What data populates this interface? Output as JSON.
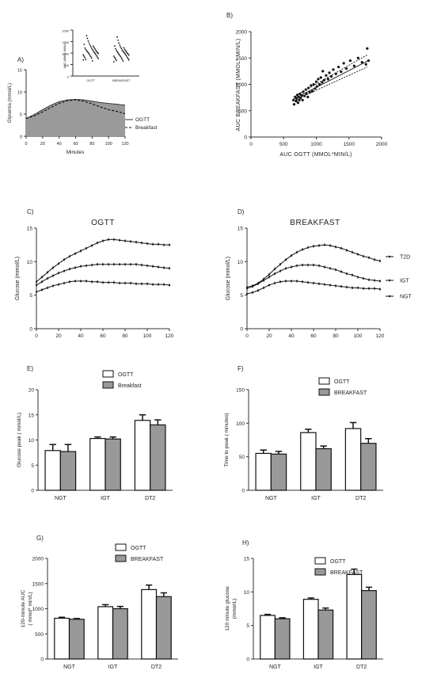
{
  "chart_data": [
    {
      "panel": "A)",
      "type": "area",
      "ylabel": "Glycemia (mmol/L)",
      "xlabel": "Minutes",
      "xlim": [
        0,
        120
      ],
      "ylim": [
        0,
        15
      ],
      "xticks": [
        0,
        20,
        40,
        60,
        80,
        100,
        120
      ],
      "yticks": [
        0,
        5,
        10,
        15
      ],
      "series": [
        {
          "name": "OGTT",
          "style": "solid",
          "x": [
            0,
            10,
            20,
            30,
            40,
            50,
            60,
            70,
            80,
            90,
            100,
            110,
            120
          ],
          "y": [
            4.0,
            4.9,
            6.0,
            7.0,
            7.8,
            8.2,
            8.3,
            8.2,
            7.9,
            7.6,
            7.4,
            7.2,
            7.0
          ]
        },
        {
          "name": "Breakfast",
          "style": "dashed",
          "x": [
            0,
            10,
            20,
            30,
            40,
            50,
            60,
            70,
            80,
            90,
            100,
            110,
            120
          ],
          "y": [
            4.0,
            4.6,
            5.5,
            6.5,
            7.4,
            8.0,
            8.2,
            7.9,
            7.3,
            6.6,
            6.0,
            5.6,
            5.1
          ]
        }
      ],
      "inset": {
        "type": "scatter",
        "categories": [
          "OGTT",
          "BREAKFAST"
        ],
        "yticks": [
          0,
          500,
          1000,
          1500,
          2000
        ],
        "ylim": [
          0,
          2000
        ],
        "ylabel": "AUC (MMOL*MIN/L)",
        "ogtt_values": [
          700,
          760,
          820,
          880,
          940,
          990,
          1040,
          1090,
          1150,
          1210,
          1280,
          1350,
          1430,
          1520,
          1640,
          1760,
          720,
          800,
          860,
          920,
          980,
          1020,
          1070,
          1120,
          1180,
          1240,
          1300,
          660,
          780,
          840,
          900,
          960,
          1010,
          1060,
          1100,
          1160,
          1220,
          1380
        ],
        "breakfast_values": [
          620,
          700,
          760,
          820,
          880,
          930,
          980,
          1030,
          1080,
          1130,
          1200,
          1270,
          1350,
          1440,
          1560,
          1700,
          680,
          740,
          800,
          860,
          910,
          960,
          1000,
          1050,
          1100,
          1160,
          1230,
          650,
          720,
          790,
          850,
          900,
          950,
          1010,
          1060,
          1120,
          1190,
          1310
        ]
      }
    },
    {
      "panel": "B)",
      "type": "scatter",
      "xlabel": "AUC OGTT (MMOL*MIN/L)",
      "ylabel": "AUC BREAKFAST (MMOL* MIN/L)",
      "xlim": [
        0,
        2000
      ],
      "ylim": [
        0,
        2000
      ],
      "xticks": [
        0,
        500,
        1000,
        1500,
        2000
      ],
      "yticks": [
        0,
        500,
        1000,
        1500,
        2000
      ],
      "points": [
        [
          650,
          700
        ],
        [
          660,
          620
        ],
        [
          680,
          760
        ],
        [
          690,
          680
        ],
        [
          700,
          720
        ],
        [
          710,
          800
        ],
        [
          720,
          650
        ],
        [
          730,
          760
        ],
        [
          740,
          700
        ],
        [
          750,
          820
        ],
        [
          760,
          740
        ],
        [
          780,
          790
        ],
        [
          790,
          700
        ],
        [
          800,
          860
        ],
        [
          820,
          780
        ],
        [
          840,
          900
        ],
        [
          850,
          820
        ],
        [
          870,
          760
        ],
        [
          880,
          930
        ],
        [
          900,
          850
        ],
        [
          920,
          980
        ],
        [
          940,
          870
        ],
        [
          960,
          1000
        ],
        [
          980,
          920
        ],
        [
          1000,
          1050
        ],
        [
          1010,
          960
        ],
        [
          1030,
          1100
        ],
        [
          1050,
          1000
        ],
        [
          1070,
          1130
        ],
        [
          1090,
          1040
        ],
        [
          1100,
          1250
        ],
        [
          1120,
          1080
        ],
        [
          1150,
          1170
        ],
        [
          1180,
          1100
        ],
        [
          1200,
          1220
        ],
        [
          1230,
          1150
        ],
        [
          1260,
          1280
        ],
        [
          1300,
          1200
        ],
        [
          1340,
          1330
        ],
        [
          1380,
          1240
        ],
        [
          1420,
          1400
        ],
        [
          1460,
          1300
        ],
        [
          1520,
          1450
        ],
        [
          1580,
          1350
        ],
        [
          1640,
          1500
        ],
        [
          1700,
          1420
        ],
        [
          1760,
          1380
        ],
        [
          1780,
          1680
        ],
        [
          1800,
          1450
        ]
      ],
      "fit": {
        "x": [
          650,
          1780
        ],
        "y": [
          720,
          1440
        ]
      },
      "ci_upper": {
        "x": [
          650,
          1780
        ],
        "y": [
          760,
          1560
        ]
      },
      "ci_lower": {
        "x": [
          650,
          1780
        ],
        "y": [
          690,
          1330
        ]
      }
    },
    {
      "panel": "C)",
      "type": "line",
      "title": "OGTT",
      "ylabel": "Glucose (mmol/L)",
      "xlim": [
        0,
        120
      ],
      "ylim": [
        0,
        15
      ],
      "xticks": [
        0,
        20,
        40,
        60,
        80,
        100,
        120
      ],
      "yticks": [
        0,
        5,
        10,
        15
      ],
      "x": [
        0,
        5,
        10,
        15,
        20,
        25,
        30,
        35,
        40,
        45,
        50,
        55,
        60,
        65,
        70,
        75,
        80,
        85,
        90,
        95,
        100,
        105,
        110,
        115,
        120
      ],
      "series": [
        {
          "group": "T2D",
          "values": [
            7.0,
            7.7,
            8.4,
            9.1,
            9.7,
            10.3,
            10.8,
            11.2,
            11.6,
            12.0,
            12.4,
            12.8,
            13.1,
            13.3,
            13.3,
            13.2,
            13.1,
            13.0,
            12.9,
            12.8,
            12.7,
            12.6,
            12.6,
            12.5,
            12.5
          ]
        },
        {
          "group": "IGT",
          "values": [
            6.5,
            7.0,
            7.5,
            7.9,
            8.3,
            8.6,
            8.9,
            9.1,
            9.3,
            9.4,
            9.5,
            9.6,
            9.6,
            9.6,
            9.6,
            9.6,
            9.6,
            9.6,
            9.6,
            9.5,
            9.4,
            9.3,
            9.2,
            9.1,
            9.0
          ]
        },
        {
          "group": "NGT",
          "values": [
            5.5,
            5.8,
            6.1,
            6.4,
            6.6,
            6.8,
            7.0,
            7.1,
            7.1,
            7.1,
            7.0,
            7.0,
            6.9,
            6.9,
            6.9,
            6.8,
            6.8,
            6.8,
            6.7,
            6.7,
            6.7,
            6.6,
            6.6,
            6.6,
            6.5
          ]
        }
      ]
    },
    {
      "panel": "D)",
      "type": "line",
      "title": "BREAKFAST",
      "ylabel": "Glucose (mmol/L)",
      "xlim": [
        0,
        120
      ],
      "ylim": [
        0,
        15
      ],
      "xticks": [
        0,
        20,
        40,
        60,
        80,
        100,
        120
      ],
      "yticks": [
        0,
        5,
        10,
        15
      ],
      "legend": [
        "T2D",
        "IGT",
        "NGT"
      ],
      "x": [
        0,
        5,
        10,
        15,
        20,
        25,
        30,
        35,
        40,
        45,
        50,
        55,
        60,
        65,
        70,
        75,
        80,
        85,
        90,
        95,
        100,
        105,
        110,
        115,
        120
      ],
      "series": [
        {
          "name": "T2D",
          "values": [
            6.2,
            6.4,
            6.8,
            7.4,
            8.1,
            8.9,
            9.6,
            10.3,
            10.9,
            11.4,
            11.8,
            12.1,
            12.3,
            12.4,
            12.5,
            12.4,
            12.2,
            12.0,
            11.7,
            11.4,
            11.1,
            10.8,
            10.6,
            10.3,
            10.1
          ]
        },
        {
          "name": "IGT",
          "values": [
            6.0,
            6.3,
            6.7,
            7.2,
            7.7,
            8.2,
            8.6,
            9.0,
            9.2,
            9.4,
            9.5,
            9.5,
            9.5,
            9.4,
            9.2,
            9.0,
            8.8,
            8.5,
            8.2,
            8.0,
            7.7,
            7.5,
            7.3,
            7.2,
            7.1
          ]
        },
        {
          "name": "NGT",
          "values": [
            5.2,
            5.4,
            5.7,
            6.1,
            6.5,
            6.8,
            7.0,
            7.1,
            7.1,
            7.1,
            7.0,
            6.9,
            6.8,
            6.7,
            6.6,
            6.5,
            6.4,
            6.3,
            6.2,
            6.1,
            6.1,
            6.0,
            6.0,
            6.0,
            5.9
          ]
        }
      ]
    },
    {
      "panel": "E)",
      "type": "bar",
      "ylabel": "Glucose peak ( mmol/L)",
      "categories": [
        "NGT",
        "IGT",
        "DT2"
      ],
      "ylim": [
        0,
        20
      ],
      "yticks": [
        0,
        5,
        10,
        15,
        20
      ],
      "series": [
        {
          "name": "OGTT",
          "values": [
            7.9,
            10.3,
            13.9
          ],
          "errors": [
            1.2,
            0.3,
            1.1
          ]
        },
        {
          "name": "Breakfast",
          "values": [
            7.7,
            10.2,
            13.0
          ],
          "errors": [
            1.4,
            0.4,
            1.0
          ]
        }
      ]
    },
    {
      "panel": "F)",
      "type": "bar",
      "ylabel": "Time to peak ( minutes)",
      "categories": [
        "NGT",
        "IGT",
        "DT2"
      ],
      "ylim": [
        0,
        150
      ],
      "yticks": [
        0,
        50,
        100,
        150
      ],
      "series": [
        {
          "name": "OGTT",
          "values": [
            55,
            86,
            92
          ],
          "errors": [
            5,
            5,
            9
          ]
        },
        {
          "name": "BREAKFAST",
          "values": [
            54,
            62,
            70
          ],
          "errors": [
            4,
            4,
            7
          ]
        }
      ]
    },
    {
      "panel": "G)",
      "type": "bar",
      "ylabel": "120-minute AUC",
      "ylabel2": "( mmol* min/L)",
      "categories": [
        "NGT",
        "IGT",
        "DT2"
      ],
      "ylim": [
        0,
        2000
      ],
      "yticks": [
        0,
        500,
        1000,
        1500,
        2000
      ],
      "series": [
        {
          "name": "OGTT",
          "values": [
            810,
            1040,
            1380
          ],
          "errors": [
            20,
            40,
            90
          ]
        },
        {
          "name": "BREAKFAST",
          "values": [
            790,
            1000,
            1240
          ],
          "errors": [
            15,
            45,
            75
          ]
        }
      ]
    },
    {
      "panel": "H)",
      "type": "bar",
      "ylabel": "120 minute glucose",
      "ylabel2": "(mmol/L)",
      "categories": [
        "NGT",
        "IGT",
        "DT2"
      ],
      "ylim": [
        0,
        15
      ],
      "yticks": [
        0,
        5,
        10,
        15
      ],
      "series": [
        {
          "name": "OGTT",
          "values": [
            6.5,
            8.9,
            12.6
          ],
          "errors": [
            0.15,
            0.2,
            0.8
          ]
        },
        {
          "name": "BREAKFAST",
          "values": [
            6.0,
            7.3,
            10.2
          ],
          "errors": [
            0.15,
            0.3,
            0.5
          ]
        }
      ]
    }
  ]
}
